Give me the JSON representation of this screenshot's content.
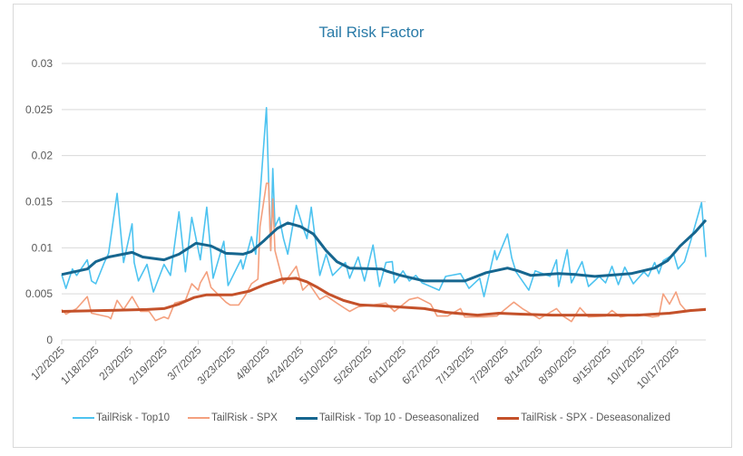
{
  "chart_data": {
    "type": "line",
    "title": "Tail Risk Factor",
    "xlabel": "",
    "ylabel": "",
    "ylim": [
      0,
      0.03
    ],
    "xlim": [
      "1/2/2025",
      "10/31/2025"
    ],
    "y_ticks": [
      "0",
      "0.005",
      "0.01",
      "0.015",
      "0.02",
      "0.025",
      "0.03"
    ],
    "x_ticks": [
      "1/2/2025",
      "1/18/2025",
      "2/3/2025",
      "2/19/2025",
      "3/7/2025",
      "3/23/2025",
      "4/8/2025",
      "4/24/2025",
      "5/10/2025",
      "5/26/2025",
      "6/11/2025",
      "6/27/2025",
      "7/13/2025",
      "7/29/2025",
      "8/14/2025",
      "8/30/2025",
      "9/15/2025",
      "10/1/2025",
      "10/17/2025"
    ],
    "grid": "horizontal",
    "legend_position": "bottom",
    "series": [
      {
        "name": "TailRisk - Top10",
        "color": "#4DC3F0",
        "width": 1.6,
        "points": [
          [
            "1/2/2025",
            0.0071
          ],
          [
            "1/4/2025",
            0.0056
          ],
          [
            "1/7/2025",
            0.0077
          ],
          [
            "1/9/2025",
            0.007
          ],
          [
            "1/14/2025",
            0.0087
          ],
          [
            "1/16/2025",
            0.0064
          ],
          [
            "1/18/2025",
            0.0061
          ],
          [
            "1/22/2025",
            0.0084
          ],
          [
            "1/24/2025",
            0.0094
          ],
          [
            "1/28/2025",
            0.0159
          ],
          [
            "1/31/2025",
            0.0084
          ],
          [
            "2/4/2025",
            0.0126
          ],
          [
            "2/5/2025",
            0.0084
          ],
          [
            "2/7/2025",
            0.0064
          ],
          [
            "2/11/2025",
            0.0082
          ],
          [
            "2/14/2025",
            0.0052
          ],
          [
            "2/19/2025",
            0.0082
          ],
          [
            "2/22/2025",
            0.007
          ],
          [
            "2/26/2025",
            0.0139
          ],
          [
            "3/1/2025",
            0.0074
          ],
          [
            "3/4/2025",
            0.0133
          ],
          [
            "3/8/2025",
            0.0087
          ],
          [
            "3/11/2025",
            0.0144
          ],
          [
            "3/14/2025",
            0.0067
          ],
          [
            "3/19/2025",
            0.0107
          ],
          [
            "3/21/2025",
            0.0059
          ],
          [
            "3/27/2025",
            0.0087
          ],
          [
            "3/28/2025",
            0.0077
          ],
          [
            "4/1/2025",
            0.0112
          ],
          [
            "4/3/2025",
            0.0093
          ],
          [
            "4/8/2025",
            0.0252
          ],
          [
            "4/10/2025",
            0.0097
          ],
          [
            "4/11/2025",
            0.0186
          ],
          [
            "4/12/2025",
            0.0123
          ],
          [
            "4/14/2025",
            0.0133
          ],
          [
            "4/16/2025",
            0.011
          ],
          [
            "4/18/2025",
            0.0093
          ],
          [
            "4/22/2025",
            0.0146
          ],
          [
            "4/25/2025",
            0.0123
          ],
          [
            "4/27/2025",
            0.011
          ],
          [
            "4/29/2025",
            0.0144
          ],
          [
            "5/3/2025",
            0.007
          ],
          [
            "5/6/2025",
            0.0093
          ],
          [
            "5/9/2025",
            0.007
          ],
          [
            "5/15/2025",
            0.0084
          ],
          [
            "5/17/2025",
            0.0067
          ],
          [
            "5/21/2025",
            0.009
          ],
          [
            "5/24/2025",
            0.0064
          ],
          [
            "5/28/2025",
            0.0103
          ],
          [
            "5/31/2025",
            0.0058
          ],
          [
            "6/3/2025",
            0.0084
          ],
          [
            "6/6/2025",
            0.0085
          ],
          [
            "6/7/2025",
            0.0062
          ],
          [
            "6/11/2025",
            0.0075
          ],
          [
            "6/14/2025",
            0.0064
          ],
          [
            "6/17/2025",
            0.007
          ],
          [
            "6/20/2025",
            0.0062
          ],
          [
            "6/28/2025",
            0.0054
          ],
          [
            "7/1/2025",
            0.0069
          ],
          [
            "7/8/2025",
            0.0072
          ],
          [
            "7/12/2025",
            0.0056
          ],
          [
            "7/17/2025",
            0.0067
          ],
          [
            "7/19/2025",
            0.0047
          ],
          [
            "7/24/2025",
            0.0097
          ],
          [
            "7/25/2025",
            0.0087
          ],
          [
            "7/30/2025",
            0.0115
          ],
          [
            "8/1/2025",
            0.0089
          ],
          [
            "8/3/2025",
            0.0074
          ],
          [
            "8/9/2025",
            0.0054
          ],
          [
            "8/12/2025",
            0.0075
          ],
          [
            "8/19/2025",
            0.0069
          ],
          [
            "8/22/2025",
            0.0087
          ],
          [
            "8/23/2025",
            0.0058
          ],
          [
            "8/27/2025",
            0.0098
          ],
          [
            "8/29/2025",
            0.0062
          ],
          [
            "9/3/2025",
            0.0085
          ],
          [
            "9/6/2025",
            0.0058
          ],
          [
            "9/11/2025",
            0.0069
          ],
          [
            "9/14/2025",
            0.0062
          ],
          [
            "9/17/2025",
            0.008
          ],
          [
            "9/20/2025",
            0.006
          ],
          [
            "9/23/2025",
            0.0079
          ],
          [
            "9/27/2025",
            0.0061
          ],
          [
            "10/2/2025",
            0.0074
          ],
          [
            "10/4/2025",
            0.0069
          ],
          [
            "10/7/2025",
            0.0084
          ],
          [
            "10/9/2025",
            0.0072
          ],
          [
            "10/11/2025",
            0.0086
          ],
          [
            "10/16/2025",
            0.0093
          ],
          [
            "10/18/2025",
            0.0077
          ],
          [
            "10/21/2025",
            0.0085
          ],
          [
            "10/24/2025",
            0.0108
          ],
          [
            "10/29/2025",
            0.0149
          ],
          [
            "10/31/2025",
            0.009
          ]
        ]
      },
      {
        "name": "TailRisk - SPX",
        "color": "#F4A07E",
        "width": 1.6,
        "points": [
          [
            "1/2/2025",
            0.0033
          ],
          [
            "1/4/2025",
            0.0028
          ],
          [
            "1/9/2025",
            0.0034
          ],
          [
            "1/14/2025",
            0.0047
          ],
          [
            "1/16/2025",
            0.0029
          ],
          [
            "1/24/2025",
            0.0025
          ],
          [
            "1/25/2025",
            0.0023
          ],
          [
            "1/28/2025",
            0.0043
          ],
          [
            "1/31/2025",
            0.0033
          ],
          [
            "2/4/2025",
            0.0047
          ],
          [
            "2/8/2025",
            0.0031
          ],
          [
            "2/12/2025",
            0.0031
          ],
          [
            "2/15/2025",
            0.0021
          ],
          [
            "2/19/2025",
            0.0025
          ],
          [
            "2/21/2025",
            0.0023
          ],
          [
            "2/24/2025",
            0.004
          ],
          [
            "3/1/2025",
            0.0043
          ],
          [
            "3/4/2025",
            0.0061
          ],
          [
            "3/7/2025",
            0.0054
          ],
          [
            "3/8/2025",
            0.0062
          ],
          [
            "3/11/2025",
            0.0074
          ],
          [
            "3/13/2025",
            0.0057
          ],
          [
            "3/20/2025",
            0.0041
          ],
          [
            "3/22/2025",
            0.0038
          ],
          [
            "3/26/2025",
            0.0038
          ],
          [
            "3/29/2025",
            0.0048
          ],
          [
            "4/1/2025",
            0.0061
          ],
          [
            "4/4/2025",
            0.0066
          ],
          [
            "4/5/2025",
            0.0123
          ],
          [
            "4/8/2025",
            0.017
          ],
          [
            "4/9/2025",
            0.017
          ],
          [
            "4/10/2025",
            0.0097
          ],
          [
            "4/11/2025",
            0.0153
          ],
          [
            "4/12/2025",
            0.0097
          ],
          [
            "4/16/2025",
            0.0061
          ],
          [
            "4/18/2025",
            0.0067
          ],
          [
            "4/22/2025",
            0.008
          ],
          [
            "4/25/2025",
            0.0054
          ],
          [
            "4/28/2025",
            0.0061
          ],
          [
            "5/3/2025",
            0.0044
          ],
          [
            "5/6/2025",
            0.0048
          ],
          [
            "5/11/2025",
            0.004
          ],
          [
            "5/17/2025",
            0.0031
          ],
          [
            "5/21/2025",
            0.0036
          ],
          [
            "5/28/2025",
            0.0038
          ],
          [
            "6/3/2025",
            0.004
          ],
          [
            "6/7/2025",
            0.0031
          ],
          [
            "6/14/2025",
            0.0044
          ],
          [
            "6/18/2025",
            0.0046
          ],
          [
            "6/24/2025",
            0.0039
          ],
          [
            "6/27/2025",
            0.0026
          ],
          [
            "7/2/2025",
            0.0026
          ],
          [
            "7/8/2025",
            0.0034
          ],
          [
            "7/10/2025",
            0.0025
          ],
          [
            "7/19/2025",
            0.0025
          ],
          [
            "7/25/2025",
            0.0026
          ],
          [
            "8/2/2025",
            0.0041
          ],
          [
            "8/6/2025",
            0.0034
          ],
          [
            "8/14/2025",
            0.0023
          ],
          [
            "8/22/2025",
            0.0034
          ],
          [
            "8/25/2025",
            0.0026
          ],
          [
            "8/29/2025",
            0.002
          ],
          [
            "9/2/2025",
            0.0035
          ],
          [
            "9/6/2025",
            0.0025
          ],
          [
            "9/14/2025",
            0.0026
          ],
          [
            "9/17/2025",
            0.0032
          ],
          [
            "9/21/2025",
            0.0025
          ],
          [
            "9/29/2025",
            0.0028
          ],
          [
            "10/6/2025",
            0.0025
          ],
          [
            "10/9/2025",
            0.0026
          ],
          [
            "10/11/2025",
            0.005
          ],
          [
            "10/14/2025",
            0.0039
          ],
          [
            "10/17/2025",
            0.0052
          ],
          [
            "10/19/2025",
            0.0039
          ],
          [
            "10/22/2025",
            0.0031
          ],
          [
            "10/27/2025",
            0.0033
          ],
          [
            "10/31/2025",
            0.0034
          ]
        ]
      },
      {
        "name": "TailRisk - Top 10 - Deseasonalized",
        "color": "#16668F",
        "width": 3,
        "points": [
          [
            "1/2/2025",
            0.0071
          ],
          [
            "1/14/2025",
            0.0077
          ],
          [
            "1/18/2025",
            0.0085
          ],
          [
            "1/24/2025",
            0.009
          ],
          [
            "2/4/2025",
            0.0095
          ],
          [
            "2/9/2025",
            0.009
          ],
          [
            "2/19/2025",
            0.0087
          ],
          [
            "2/26/2025",
            0.0093
          ],
          [
            "3/6/2025",
            0.0105
          ],
          [
            "3/13/2025",
            0.0102
          ],
          [
            "3/20/2025",
            0.0094
          ],
          [
            "3/28/2025",
            0.0093
          ],
          [
            "4/1/2025",
            0.0096
          ],
          [
            "4/7/2025",
            0.0108
          ],
          [
            "4/13/2025",
            0.0121
          ],
          [
            "4/18/2025",
            0.0127
          ],
          [
            "4/24/2025",
            0.0123
          ],
          [
            "4/30/2025",
            0.0115
          ],
          [
            "5/6/2025",
            0.0097
          ],
          [
            "5/11/2025",
            0.0085
          ],
          [
            "5/17/2025",
            0.0078
          ],
          [
            "6/1/2025",
            0.0077
          ],
          [
            "6/3/2025",
            0.0075
          ],
          [
            "6/10/2025",
            0.007
          ],
          [
            "6/21/2025",
            0.0064
          ],
          [
            "7/10/2025",
            0.0064
          ],
          [
            "7/20/2025",
            0.0073
          ],
          [
            "7/30/2025",
            0.0078
          ],
          [
            "8/4/2025",
            0.0075
          ],
          [
            "8/10/2025",
            0.007
          ],
          [
            "8/23/2025",
            0.0072
          ],
          [
            "8/31/2025",
            0.0071
          ],
          [
            "9/9/2025",
            0.0069
          ],
          [
            "9/26/2025",
            0.0072
          ],
          [
            "10/7/2025",
            0.0078
          ],
          [
            "10/13/2025",
            0.0086
          ],
          [
            "10/19/2025",
            0.0102
          ],
          [
            "10/26/2025",
            0.0117
          ],
          [
            "10/31/2025",
            0.013
          ]
        ]
      },
      {
        "name": "TailRisk - SPX - Deseasonalized",
        "color": "#C4512A",
        "width": 3,
        "points": [
          [
            "1/2/2025",
            0.0031
          ],
          [
            "1/22/2025",
            0.0032
          ],
          [
            "2/11/2025",
            0.0033
          ],
          [
            "2/19/2025",
            0.0034
          ],
          [
            "2/26/2025",
            0.0039
          ],
          [
            "3/5/2025",
            0.0046
          ],
          [
            "3/11/2025",
            0.0049
          ],
          [
            "3/23/2025",
            0.0049
          ],
          [
            "3/31/2025",
            0.0053
          ],
          [
            "4/7/2025",
            0.006
          ],
          [
            "4/15/2025",
            0.0066
          ],
          [
            "4/22/2025",
            0.0067
          ],
          [
            "4/27/2025",
            0.0063
          ],
          [
            "5/2/2025",
            0.0057
          ],
          [
            "5/7/2025",
            0.005
          ],
          [
            "5/14/2025",
            0.0043
          ],
          [
            "5/22/2025",
            0.0038
          ],
          [
            "6/1/2025",
            0.0037
          ],
          [
            "6/21/2025",
            0.0034
          ],
          [
            "7/1/2025",
            0.003
          ],
          [
            "7/16/2025",
            0.0027
          ],
          [
            "7/26/2025",
            0.0029
          ],
          [
            "8/5/2025",
            0.0028
          ],
          [
            "8/20/2025",
            0.0027
          ],
          [
            "9/9/2025",
            0.0027
          ],
          [
            "9/29/2025",
            0.0027
          ],
          [
            "10/14/2025",
            0.0029
          ],
          [
            "10/24/2025",
            0.0032
          ],
          [
            "10/31/2025",
            0.0033
          ]
        ]
      }
    ]
  }
}
